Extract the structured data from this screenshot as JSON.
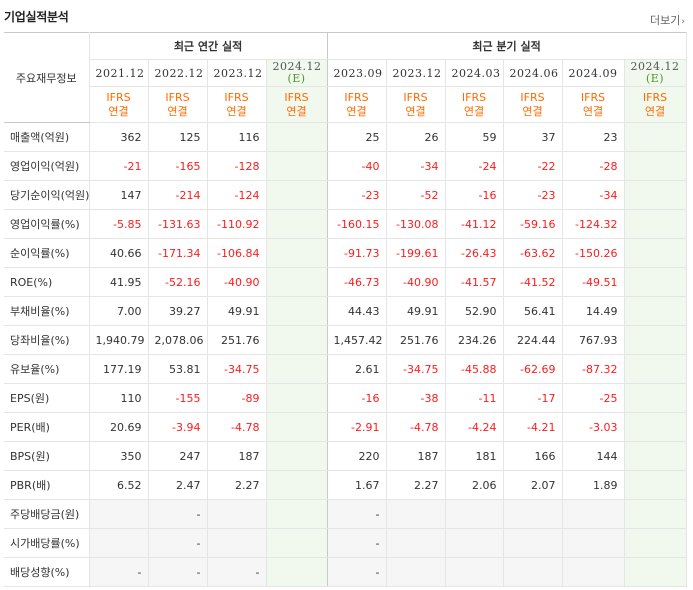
{
  "header": {
    "title": "기업실적분석",
    "more": "더보기"
  },
  "table": {
    "corner_label": "주요재무정보",
    "group_labels": {
      "annual": "최근 연간 실적",
      "quarterly": "최근 분기 실적"
    },
    "periods": [
      "2021.12",
      "2022.12",
      "2023.12",
      "2024.12",
      "2023.09",
      "2023.12",
      "2024.03",
      "2024.06",
      "2024.09",
      "2024.12"
    ],
    "estimate_mark": "(E)",
    "ifrs": {
      "line1": "IFRS",
      "line2": "연결"
    },
    "rows": [
      {
        "label": "매출액(억원)",
        "values": [
          "362",
          "125",
          "116",
          "",
          "25",
          "26",
          "59",
          "37",
          "23",
          ""
        ]
      },
      {
        "label": "영업이익(억원)",
        "values": [
          "-21",
          "-165",
          "-128",
          "",
          "-40",
          "-34",
          "-24",
          "-22",
          "-28",
          ""
        ]
      },
      {
        "label": "당기순이익(억원)",
        "values": [
          "147",
          "-214",
          "-124",
          "",
          "-23",
          "-52",
          "-16",
          "-23",
          "-34",
          ""
        ]
      },
      {
        "label": "영업이익률(%)",
        "values": [
          "-5.85",
          "-131.63",
          "-110.92",
          "",
          "-160.15",
          "-130.08",
          "-41.12",
          "-59.16",
          "-124.32",
          ""
        ]
      },
      {
        "label": "순이익률(%)",
        "values": [
          "40.66",
          "-171.34",
          "-106.84",
          "",
          "-91.73",
          "-199.61",
          "-26.43",
          "-63.62",
          "-150.26",
          ""
        ]
      },
      {
        "label": "ROE(%)",
        "values": [
          "41.95",
          "-52.16",
          "-40.90",
          "",
          "-46.73",
          "-40.90",
          "-41.57",
          "-41.52",
          "-49.51",
          ""
        ]
      },
      {
        "label": "부채비율(%)",
        "values": [
          "7.00",
          "39.27",
          "49.91",
          "",
          "44.43",
          "49.91",
          "52.90",
          "56.41",
          "14.49",
          ""
        ]
      },
      {
        "label": "당좌비율(%)",
        "values": [
          "1,940.79",
          "2,078.06",
          "251.76",
          "",
          "1,457.42",
          "251.76",
          "234.26",
          "224.44",
          "767.93",
          ""
        ]
      },
      {
        "label": "유보율(%)",
        "values": [
          "177.19",
          "53.81",
          "-34.75",
          "",
          "2.61",
          "-34.75",
          "-45.88",
          "-62.69",
          "-87.32",
          ""
        ]
      },
      {
        "label": "EPS(원)",
        "values": [
          "110",
          "-155",
          "-89",
          "",
          "-16",
          "-38",
          "-11",
          "-17",
          "-25",
          ""
        ]
      },
      {
        "label": "PER(배)",
        "values": [
          "20.69",
          "-3.94",
          "-4.78",
          "",
          "-2.91",
          "-4.78",
          "-4.24",
          "-4.21",
          "-3.03",
          ""
        ]
      },
      {
        "label": "BPS(원)",
        "values": [
          "350",
          "247",
          "187",
          "",
          "220",
          "187",
          "181",
          "166",
          "144",
          ""
        ]
      },
      {
        "label": "PBR(배)",
        "values": [
          "6.52",
          "2.47",
          "2.27",
          "",
          "1.67",
          "2.27",
          "2.06",
          "2.07",
          "1.89",
          ""
        ]
      },
      {
        "label": "주당배당금(원)",
        "values": [
          "",
          "-",
          "",
          "",
          "-",
          "",
          "",
          "",
          "",
          ""
        ]
      },
      {
        "label": "시가배당률(%)",
        "values": [
          "",
          "-",
          "",
          "",
          "-",
          "",
          "",
          "",
          "",
          ""
        ]
      },
      {
        "label": "배당성향(%)",
        "values": [
          "-",
          "-",
          "-",
          "",
          "-",
          "",
          "",
          "",
          "",
          ""
        ]
      }
    ]
  },
  "colors": {
    "negative": "#ff1b1b",
    "ifrs": "#ff6a00",
    "estimate_bg": "#f1f8ee",
    "dividend_bg": "#f6f6f6"
  }
}
